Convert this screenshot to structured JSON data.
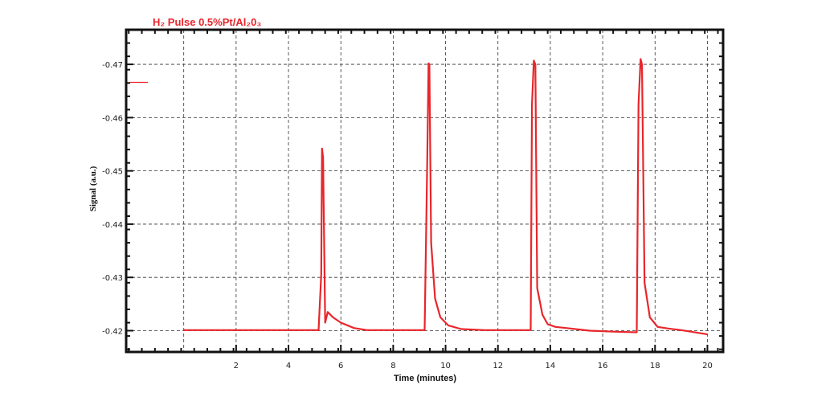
{
  "chart_data": {
    "type": "line",
    "title": "H₂ Pulse 0.5%Pt/Al₂0₃",
    "xlabel": "Time (minutes)",
    "ylabel": "Signal (a.u.)",
    "xlim": [
      -2.2,
      20.6
    ],
    "ylim": [
      -0.416,
      -0.4765
    ],
    "x_ticks": [
      2,
      4,
      6,
      8,
      10,
      12,
      14,
      16,
      18,
      20
    ],
    "x_tick_labels": [
      "2",
      "4",
      "6",
      "8",
      "10",
      "12",
      "14",
      "16",
      "18",
      "20"
    ],
    "y_ticks": [
      -0.42,
      -0.43,
      -0.44,
      -0.45,
      -0.46,
      -0.47
    ],
    "y_tick_labels": [
      "-0.42",
      "-0.43",
      "-0.44",
      "-0.45",
      "-0.46",
      "-0.47"
    ],
    "grid": true,
    "legend": "left",
    "colors": {
      "series": "#e8262b",
      "title": "#e8262b",
      "frame": "#111111",
      "grid": "#333333"
    },
    "series": [
      {
        "x": [
          0,
          5.15,
          5.25,
          5.28,
          5.32,
          5.4,
          5.5,
          5.7,
          6.0,
          6.5,
          7.0,
          8.0,
          9.2,
          9.3,
          9.35,
          9.38,
          9.45,
          9.6,
          9.8,
          10.1,
          10.6,
          11.5,
          12.5,
          13.25,
          13.3,
          13.37,
          13.43,
          13.5,
          13.7,
          13.9,
          14.2,
          14.6,
          15.5,
          16.5,
          17.3,
          17.37,
          17.45,
          17.5,
          17.6,
          17.8,
          18.1,
          18.5,
          19.0,
          20.0
        ],
        "y": [
          -0.4201,
          -0.4201,
          -0.4305,
          -0.4542,
          -0.4525,
          -0.4215,
          -0.4235,
          -0.4225,
          -0.4215,
          -0.4205,
          -0.4201,
          -0.4201,
          -0.4201,
          -0.4525,
          -0.4702,
          -0.47,
          -0.4365,
          -0.426,
          -0.4225,
          -0.421,
          -0.4203,
          -0.4201,
          -0.4201,
          -0.4201,
          -0.4625,
          -0.4707,
          -0.47,
          -0.428,
          -0.423,
          -0.4212,
          -0.4207,
          -0.4205,
          -0.42,
          -0.4198,
          -0.4197,
          -0.4625,
          -0.471,
          -0.47,
          -0.429,
          -0.4225,
          -0.4207,
          -0.4204,
          -0.4201,
          -0.4193
        ]
      }
    ]
  }
}
